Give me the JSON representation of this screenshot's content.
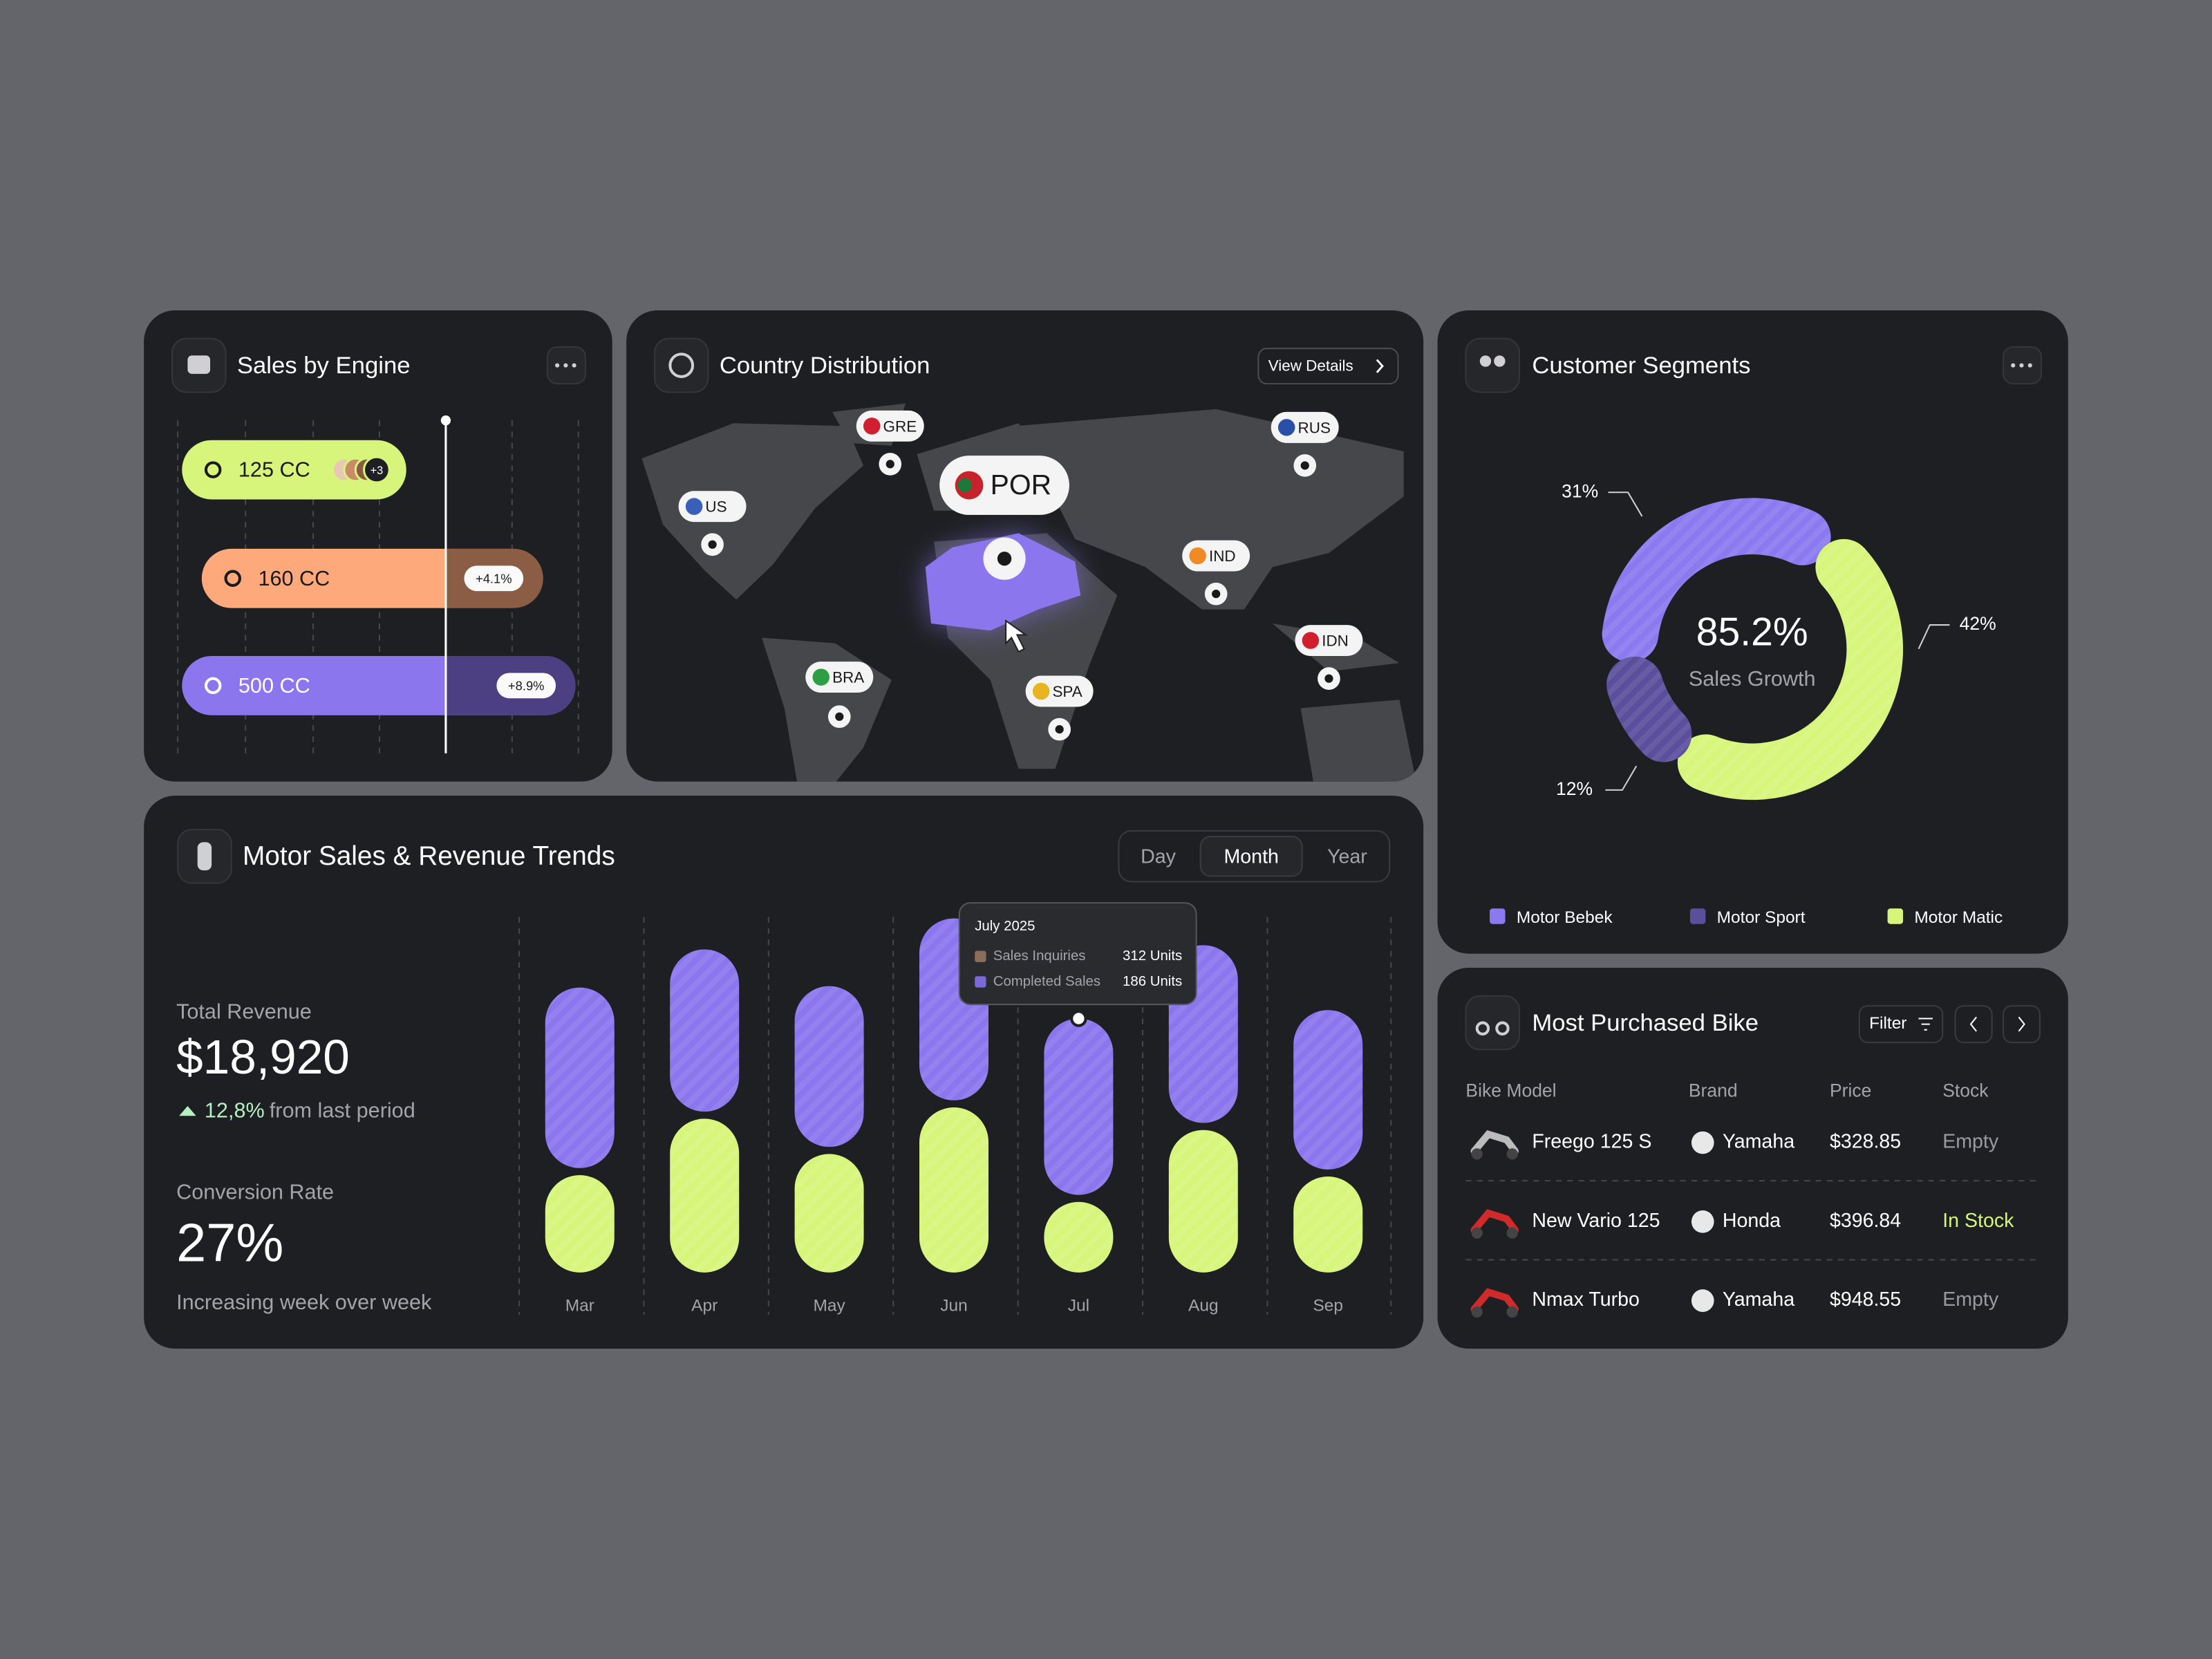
{
  "sales_by_engine": {
    "title": "Sales by Engine",
    "bars": [
      {
        "label": "125 CC",
        "value": 159,
        "color": "#d7f57a",
        "text_color": "#1a1a1a",
        "badge": "+3"
      },
      {
        "label": "160 CC",
        "value": 242,
        "color": "#fda97c",
        "text_color": "#1a1a1a",
        "badge": "+4.1%"
      },
      {
        "label": "500 CC",
        "value": 279,
        "color": "#8b76ee",
        "text_color": "#ffffff",
        "badge": "+8.9%"
      }
    ]
  },
  "country_distribution": {
    "title": "Country Distribution",
    "button": "View Details",
    "highlight": "POR",
    "pins": [
      "GRE",
      "RUS",
      "US",
      "IND",
      "IDN",
      "BRA",
      "SPA"
    ]
  },
  "customer_segments": {
    "title": "Customer Segments",
    "center_value": "85.2%",
    "center_label": "Sales Growth",
    "segments": [
      {
        "name": "Motor Bebek",
        "value": 31,
        "value_label": "31%",
        "color": "#8b79f0"
      },
      {
        "name": "Motor Matic",
        "value": 42,
        "value_label": "42%",
        "color": "#d7f57a"
      },
      {
        "name": "Motor Sport",
        "value": 12,
        "value_label": "12%",
        "color": "#5b4e9c"
      }
    ]
  },
  "trends": {
    "title": "Motor Sales & Revenue Trends",
    "tabs": [
      "Day",
      "Month",
      "Year"
    ],
    "active_tab": 1,
    "total_revenue_label": "Total Revenue",
    "total_revenue": "$18,920",
    "change": "12,8%",
    "change_text": "from last period",
    "conversion_label": "Conversion Rate",
    "conversion": "27%",
    "conversion_text": "Increasing week over week",
    "chart": {
      "type": "bar",
      "categories": [
        "Mar",
        "Apr",
        "May",
        "Jun",
        "Jul",
        "Aug",
        "Sep"
      ],
      "series": [
        {
          "color": "#d7f57a",
          "values": [
            69,
            109,
            84,
            117,
            50,
            101,
            68
          ]
        },
        {
          "color": "#8b76ee",
          "values": [
            128,
            115,
            114,
            129,
            125,
            126,
            113
          ]
        }
      ]
    },
    "tooltip": {
      "title": "July 2025",
      "rows": [
        {
          "name": "Sales Inquiries",
          "value": "312 Units",
          "color": "#8a6d5a"
        },
        {
          "name": "Completed Sales",
          "value": "186 Units",
          "color": "#7c68d6"
        }
      ]
    }
  },
  "most_purchased": {
    "title": "Most Purchased Bike",
    "filter": "Filter",
    "columns": [
      "Bike Model",
      "Brand",
      "Price",
      "Stock"
    ],
    "rows": [
      {
        "cells": [
          "Freego 125 S",
          "Yamaha",
          "$328.85",
          "Empty"
        ],
        "stock_color": "#9a9ba0"
      },
      {
        "cells": [
          "New Vario 125",
          "Honda",
          "$396.84",
          "In Stock"
        ],
        "stock_color": "#d7f57a"
      },
      {
        "cells": [
          "Nmax Turbo",
          "Yamaha",
          "$948.55",
          "Empty"
        ],
        "stock_color": "#9a9ba0"
      }
    ]
  }
}
